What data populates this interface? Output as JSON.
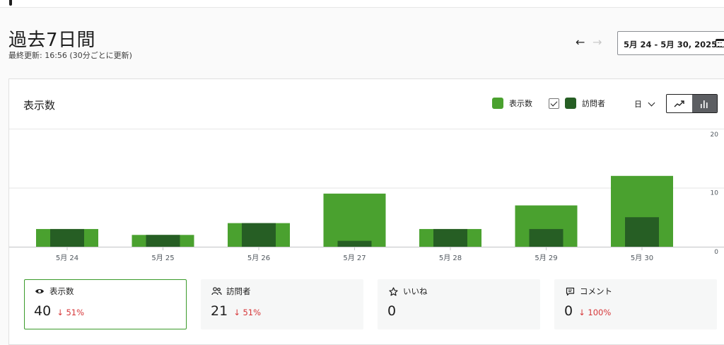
{
  "header": {
    "title": "過去7日間",
    "updated": "最終更新: 16:56 (30分ごとに更新)",
    "prev_arrow": "←",
    "next_arrow": "→",
    "date_range": "5月 24 - 5月 30, 2025"
  },
  "chart_card": {
    "title": "表示数",
    "legend": [
      {
        "label": "表示数",
        "color": "#4aa12f"
      },
      {
        "label": "訪問者",
        "color": "#265e24",
        "checked": true
      }
    ],
    "period": "日",
    "chart_types": [
      "line-chart-icon",
      "bar-chart-icon"
    ],
    "active_chart_type": "bar-chart-icon"
  },
  "chart_data": {
    "type": "bar",
    "categories": [
      "5月 24",
      "5月 25",
      "5月 26",
      "5月 27",
      "5月 28",
      "5月 29",
      "5月 30"
    ],
    "series": [
      {
        "name": "表示数",
        "values": [
          3,
          2,
          4,
          9,
          3,
          7,
          12
        ],
        "color": "#4aa12f"
      },
      {
        "name": "訪問者",
        "values": [
          3,
          2,
          4,
          1,
          3,
          3,
          5
        ],
        "color": "#265e24"
      }
    ],
    "y_ticks": [
      "20",
      "10",
      "0"
    ],
    "ylim": [
      0,
      20
    ],
    "grid": true
  },
  "stats": [
    {
      "icon": "eye-icon",
      "label": "表示数",
      "value": "40",
      "change": "↓ 51%",
      "selected": true
    },
    {
      "icon": "people-icon",
      "label": "訪問者",
      "value": "21",
      "change": "↓ 51%",
      "selected": false
    },
    {
      "icon": "star-icon",
      "label": "いいね",
      "value": "0",
      "change": "",
      "selected": false
    },
    {
      "icon": "comment-icon",
      "label": "コメント",
      "value": "0",
      "change": "↓ 100%",
      "selected": false
    }
  ]
}
